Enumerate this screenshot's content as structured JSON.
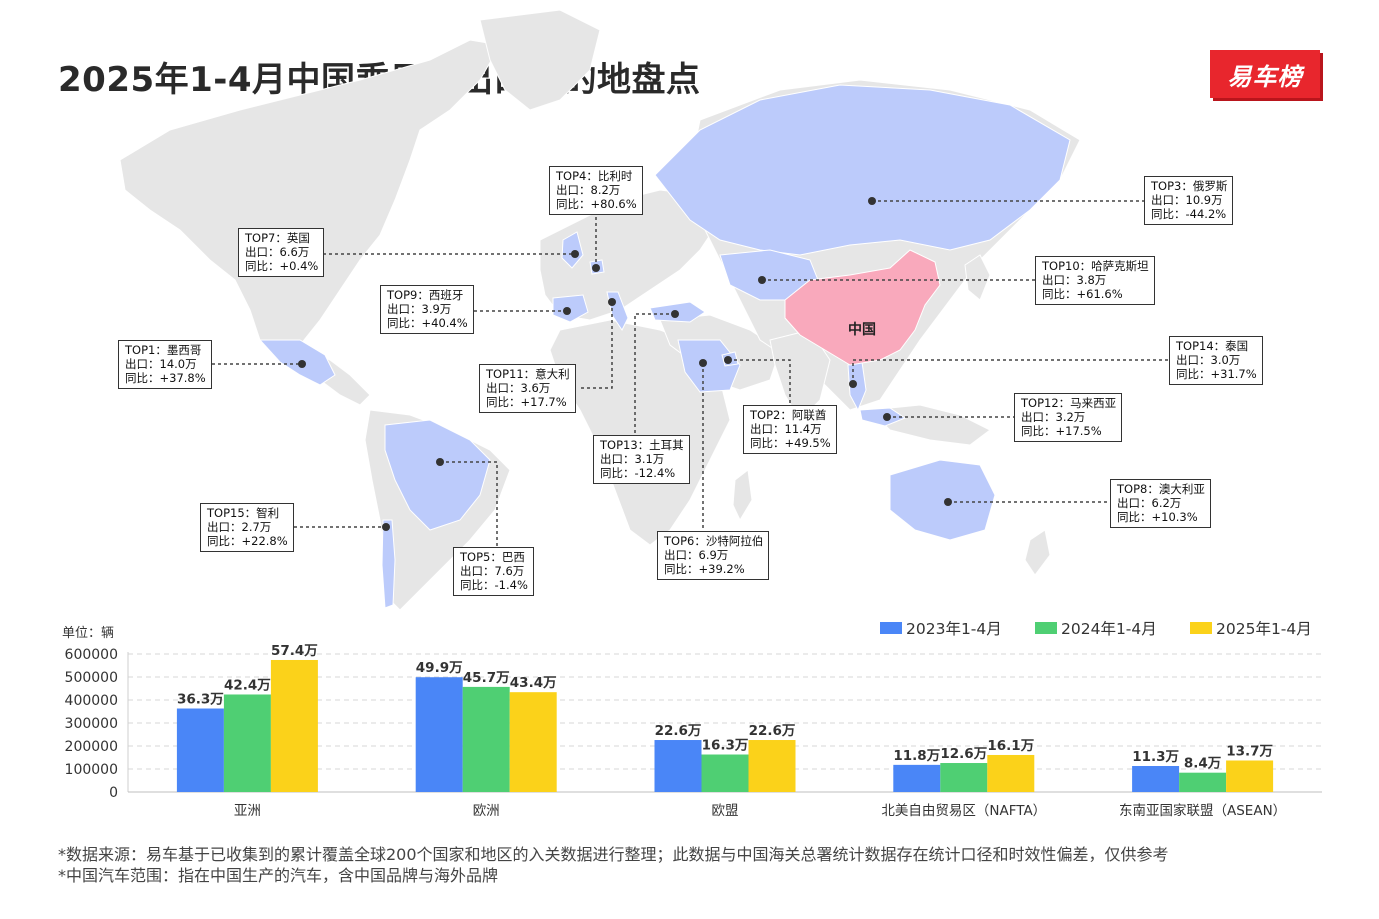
{
  "title": "2025年1-4月中国乘用车出口目的地盘点",
  "logo_text": "易车榜",
  "map": {
    "china_label": "中国",
    "colors": {
      "land": "#e6e6e6",
      "highlight": "#bccbfb",
      "china": "#f9a9bc",
      "dot": "#333333"
    },
    "callouts": [
      {
        "id": "top1",
        "rank": "TOP1：墨西哥",
        "export": "出口：14.0万",
        "yoy": "同比：+37.8%"
      },
      {
        "id": "top2",
        "rank": "TOP2：阿联酋",
        "export": "出口：11.4万",
        "yoy": "同比：+49.5%"
      },
      {
        "id": "top3",
        "rank": "TOP3：俄罗斯",
        "export": "出口：10.9万",
        "yoy": "同比：-44.2%"
      },
      {
        "id": "top4",
        "rank": "TOP4：比利时",
        "export": "出口：8.2万",
        "yoy": "同比：+80.6%"
      },
      {
        "id": "top5",
        "rank": "TOP5：巴西",
        "export": "出口：7.6万",
        "yoy": "同比：-1.4%"
      },
      {
        "id": "top6",
        "rank": "TOP6：沙特阿拉伯",
        "export": "出口：6.9万",
        "yoy": "同比：+39.2%"
      },
      {
        "id": "top7",
        "rank": "TOP7：英国",
        "export": "出口：6.6万",
        "yoy": "同比：+0.4%"
      },
      {
        "id": "top8",
        "rank": "TOP8：澳大利亚",
        "export": "出口：6.2万",
        "yoy": "同比：+10.3%"
      },
      {
        "id": "top9",
        "rank": "TOP9：西班牙",
        "export": "出口：3.9万",
        "yoy": "同比：+40.4%"
      },
      {
        "id": "top10",
        "rank": "TOP10：哈萨克斯坦",
        "export": "出口：3.8万",
        "yoy": "同比：+61.6%"
      },
      {
        "id": "top11",
        "rank": "TOP11：意大利",
        "export": "出口：3.6万",
        "yoy": "同比：+17.7%"
      },
      {
        "id": "top12",
        "rank": "TOP12：马来西亚",
        "export": "出口：3.2万",
        "yoy": "同比：+17.5%"
      },
      {
        "id": "top13",
        "rank": "TOP13：土耳其",
        "export": "出口：3.1万",
        "yoy": "同比：-12.4%"
      },
      {
        "id": "top14",
        "rank": "TOP14：泰国",
        "export": "出口：3.0万",
        "yoy": "同比：+31.7%"
      },
      {
        "id": "top15",
        "rank": "TOP15：智利",
        "export": "出口：2.7万",
        "yoy": "同比：+22.8%"
      }
    ]
  },
  "chart_data": {
    "type": "bar",
    "unit_label": "单位：辆",
    "categories": [
      "亚洲",
      "欧洲",
      "欧盟",
      "北美自由贸易区（NAFTA）",
      "东南亚国家联盟（ASEAN）"
    ],
    "series": [
      {
        "name": "2023年1-4月",
        "color": "#4a86f7",
        "values": [
          363000,
          499000,
          226000,
          118000,
          113000
        ],
        "labels": [
          "36.3万",
          "49.9万",
          "22.6万",
          "11.8万",
          "11.3万"
        ]
      },
      {
        "name": "2024年1-4月",
        "color": "#4fcf73",
        "values": [
          424000,
          457000,
          163000,
          126000,
          84000
        ],
        "labels": [
          "42.4万",
          "45.7万",
          "16.3万",
          "12.6万",
          "8.4万"
        ]
      },
      {
        "name": "2025年1-4月",
        "color": "#fbd21a",
        "values": [
          574000,
          434000,
          226000,
          161000,
          137000
        ],
        "labels": [
          "57.4万",
          "43.4万",
          "22.6万",
          "16.1万",
          "13.7万"
        ]
      }
    ],
    "yticks": [
      0,
      100000,
      200000,
      300000,
      400000,
      500000,
      600000
    ],
    "ylim": [
      0,
      600000
    ],
    "grid": true,
    "legend_position": "top-right"
  },
  "footnotes": [
    "*数据来源：易车基于已收集到的累计覆盖全球200个国家和地区的入关数据进行整理；此数据与中国海关总署统计数据存在统计口径和时效性偏差，仅供参考",
    "*中国汽车范围：指在中国生产的汽车，含中国品牌与海外品牌"
  ]
}
